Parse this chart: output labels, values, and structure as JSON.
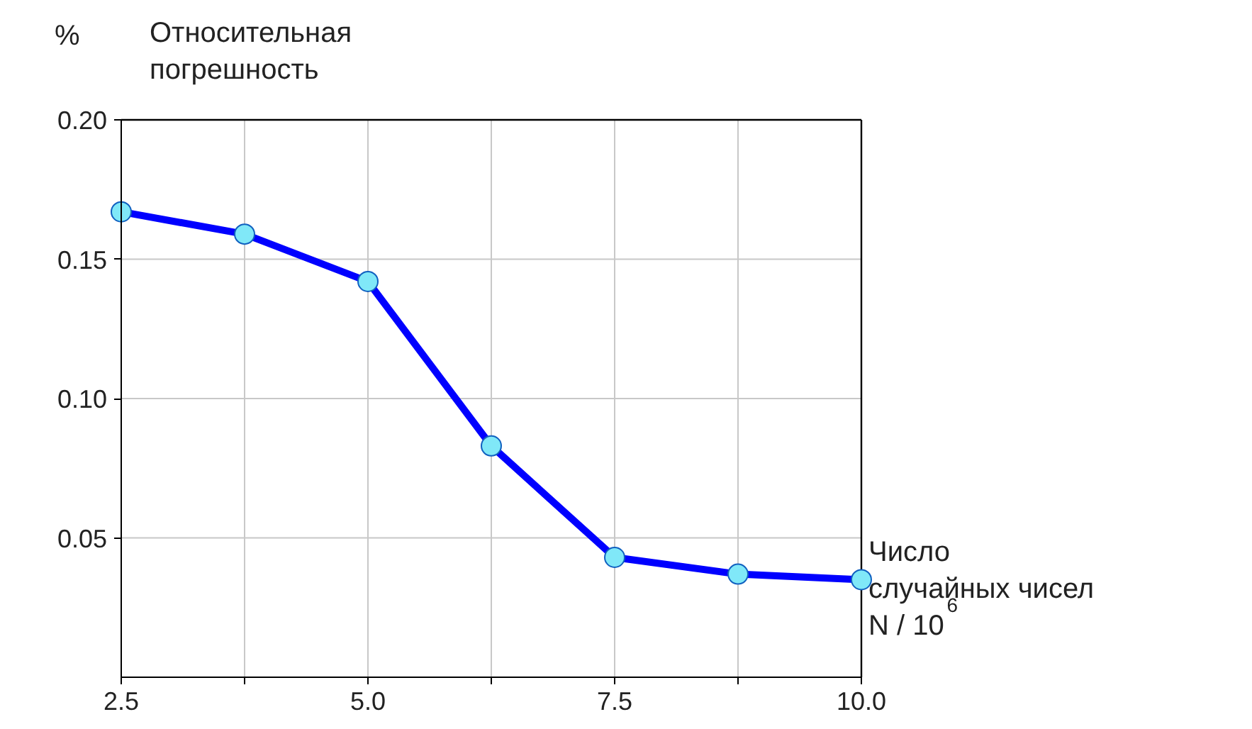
{
  "chart_data": {
    "type": "line",
    "x": [
      2.5,
      3.75,
      5.0,
      6.25,
      7.5,
      8.75,
      10.0
    ],
    "series": [
      {
        "color": "#0000ff",
        "values": [
          0.167,
          0.159,
          0.142,
          0.083,
          0.043,
          0.037,
          0.035
        ]
      }
    ],
    "marker": "circle",
    "line_style": "solid",
    "grid": true,
    "xlim": [
      2.5,
      10.0
    ],
    "xticks": [
      2.5,
      {
        "value": 3.75,
        "label": null
      },
      {
        "value": 5,
        "label": "5.0"
      },
      {
        "value": 6.25,
        "label": null
      },
      7.5,
      {
        "value": 8.75,
        "label": null
      },
      {
        "value": 10,
        "label": "10.0"
      }
    ],
    "ylim": [
      0,
      0.2
    ],
    "yticks": [
      {
        "value": 0.05,
        "label": "0.05"
      },
      {
        "value": 0.1,
        "label": "0.10"
      },
      {
        "value": 0.15,
        "label": "0.15"
      },
      {
        "value": 0.2,
        "label": "0.20"
      }
    ],
    "ylabel": "Относительная\nпогрешность",
    "xlabel": "Число\nслучайных чисел\nN / 10$^{6}$",
    "annotations": [
      "%"
    ]
  }
}
